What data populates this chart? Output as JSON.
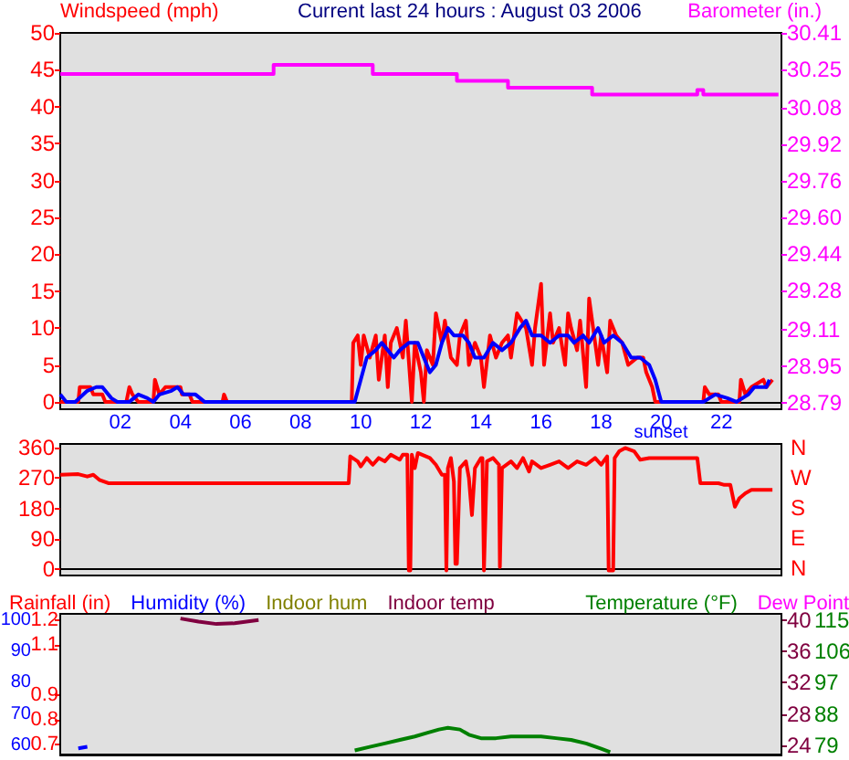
{
  "chart_data": [
    {
      "type": "line",
      "title": "Current last 24 hours : August 03 2006",
      "ylabel": "Windspeed (mph)",
      "y2label": "Barometer (in.)",
      "xlim": [
        0,
        24
      ],
      "xticks": [
        {
          "value": 2,
          "label": "02"
        },
        {
          "value": 4,
          "label": "04"
        },
        {
          "value": 6,
          "label": "06"
        },
        {
          "value": 8,
          "label": "08"
        },
        {
          "value": 10,
          "label": "10"
        },
        {
          "value": 12,
          "label": "12"
        },
        {
          "value": 14,
          "label": "14"
        },
        {
          "value": 16,
          "label": "16"
        },
        {
          "value": 18,
          "label": "18"
        },
        {
          "value": 20,
          "label": "20"
        },
        {
          "value": 22,
          "label": "22"
        }
      ],
      "ylim": [
        -1,
        50
      ],
      "yticks": [
        0,
        5,
        10,
        15,
        20,
        25,
        30,
        35,
        40,
        45,
        50
      ],
      "y2lim": [
        28.76,
        30.41
      ],
      "y2ticks": [
        28.79,
        28.95,
        29.11,
        29.28,
        29.44,
        {
          "value": 29.6,
          "label": "29.60"
        },
        29.76,
        29.92,
        30.08,
        30.25,
        30.41
      ],
      "annotations": [
        "sunset"
      ],
      "series": [
        {
          "color": "#ff0000",
          "x": [
            0,
            0.6,
            0.65,
            1.0,
            1.1,
            1.4,
            1.5,
            2.2,
            2.3,
            2.4,
            2.6,
            3.1,
            3.15,
            3.3,
            3.5,
            4.0,
            4.05,
            4.3,
            4.4,
            5.4,
            5.45,
            5.55,
            9.7,
            9.75,
            9.9,
            10.0,
            10.1,
            10.3,
            10.5,
            10.6,
            10.8,
            10.9,
            11.0,
            11.2,
            11.4,
            11.5,
            11.7,
            11.8,
            12.0,
            12.1,
            12.2,
            12.4,
            12.5,
            12.7,
            12.8,
            13.0,
            13.2,
            13.3,
            13.5,
            13.6,
            13.8,
            14.0,
            14.1,
            14.3,
            14.5,
            14.7,
            14.9,
            15.0,
            15.2,
            15.5,
            15.7,
            15.8,
            16.0,
            16.1,
            16.3,
            16.4,
            16.6,
            16.8,
            16.9,
            17.0,
            17.2,
            17.3,
            17.5,
            17.6,
            17.8,
            17.9,
            18.0,
            18.2,
            18.3,
            18.5,
            18.7,
            18.9,
            19.2,
            19.4,
            19.5,
            19.7,
            19.8,
            21.4,
            21.45,
            21.6,
            21.9,
            22.0,
            22.6,
            22.65,
            22.8,
            23.0,
            23.4,
            23.5,
            23.7
          ],
          "values": [
            0,
            0,
            2,
            2,
            1,
            1,
            0,
            0,
            2,
            1,
            0,
            0,
            3,
            1,
            2,
            2,
            1,
            1,
            0,
            0,
            1,
            0,
            0,
            8,
            9,
            5,
            9,
            6,
            9,
            3,
            9,
            2,
            8,
            10,
            6,
            11,
            0,
            8,
            4,
            0,
            7,
            5,
            12,
            8,
            11,
            6,
            5,
            9,
            11,
            5,
            8,
            6,
            2,
            9,
            6,
            8,
            9,
            6,
            12,
            10,
            5,
            10,
            16,
            5,
            12,
            8,
            10,
            5,
            12,
            10,
            7,
            11,
            2,
            14,
            8,
            5,
            9,
            4,
            11,
            9,
            8,
            5,
            6,
            6,
            4,
            2,
            0,
            0,
            2,
            1,
            1,
            0,
            0,
            3,
            1,
            2,
            3,
            2,
            3
          ]
        },
        {
          "color": "#0000ff",
          "x": [
            0,
            0.2,
            0.5,
            0.9,
            1.2,
            1.4,
            1.7,
            1.9,
            2.3,
            2.6,
            2.9,
            3.1,
            3.3,
            3.7,
            3.9,
            4.1,
            4.5,
            4.8,
            9.8,
            10.0,
            10.2,
            10.5,
            10.7,
            10.9,
            11.1,
            11.3,
            11.6,
            11.9,
            12.1,
            12.3,
            12.5,
            12.7,
            12.9,
            13.1,
            13.4,
            13.6,
            13.8,
            14.1,
            14.4,
            14.7,
            15.0,
            15.3,
            15.5,
            15.7,
            16.0,
            16.3,
            16.6,
            16.9,
            17.1,
            17.4,
            17.6,
            17.9,
            18.1,
            18.4,
            18.7,
            19.0,
            19.3,
            19.6,
            19.8,
            20.0,
            21.4,
            21.6,
            21.8,
            22.2,
            22.5,
            22.9,
            23.1,
            23.5,
            23.6
          ],
          "values": [
            1,
            0,
            0,
            1.5,
            2,
            2,
            0.5,
            0,
            0,
            1,
            0.5,
            0,
            1,
            1.5,
            2,
            1,
            1,
            0,
            0,
            3,
            6,
            7,
            8,
            7,
            6,
            7,
            8,
            8,
            6,
            4,
            5,
            8,
            10,
            9,
            9,
            8,
            6,
            6,
            8,
            7,
            8,
            10,
            11,
            9,
            9,
            8,
            9,
            9,
            8,
            9,
            8,
            10,
            8,
            9,
            8,
            6,
            6,
            5,
            3,
            0,
            0,
            0.5,
            1,
            0.5,
            0,
            1,
            2,
            2,
            3
          ]
        },
        {
          "type": "step",
          "axis": "y2",
          "color": "#ff00ff",
          "x": [
            0,
            7.1,
            10.4,
            13.2,
            14.9,
            17.7,
            21.2,
            21.4,
            23.9
          ],
          "values": [
            30.23,
            30.27,
            30.23,
            30.2,
            30.17,
            30.14,
            30.16,
            30.14,
            30.14
          ]
        }
      ]
    },
    {
      "type": "line",
      "tick_labels": "y",
      "xlim": [
        0,
        24
      ],
      "ylim": [
        -20,
        372
      ],
      "yticks": [
        0,
        90,
        180,
        270,
        360
      ],
      "annotations": [
        "N",
        "W",
        "S",
        "E",
        "N"
      ],
      "series": [
        {
          "color": "#ff0000",
          "x": [
            0,
            0.6,
            0.9,
            1.1,
            1.3,
            1.6,
            9.6,
            9.65,
            9.9,
            10.0,
            10.2,
            10.4,
            10.6,
            10.8,
            11.0,
            11.3,
            11.4,
            11.55,
            11.6,
            11.65,
            11.7,
            11.8,
            11.9,
            12.3,
            12.5,
            12.7,
            12.8,
            12.85,
            12.9,
            13.0,
            13.1,
            13.15,
            13.2,
            13.3,
            13.5,
            13.6,
            13.7,
            13.8,
            14.0,
            14.05,
            14.1,
            14.2,
            14.4,
            14.6,
            14.63,
            14.66,
            14.7,
            15.0,
            15.2,
            15.4,
            15.6,
            15.7,
            16.0,
            16.3,
            16.6,
            16.9,
            17.2,
            17.5,
            17.8,
            18.0,
            18.2,
            18.25,
            18.4,
            18.45,
            18.6,
            18.8,
            19.1,
            19.3,
            19.6,
            21.2,
            21.3,
            21.9,
            22.1,
            22.3,
            22.45,
            22.6,
            22.8,
            23.0,
            23.7
          ],
          "values": [
            280,
            282,
            275,
            280,
            265,
            255,
            255,
            335,
            320,
            305,
            330,
            310,
            330,
            320,
            340,
            325,
            340,
            340,
            -5,
            -5,
            340,
            300,
            345,
            330,
            310,
            280,
            280,
            -5,
            300,
            330,
            260,
            15,
            15,
            300,
            320,
            270,
            160,
            300,
            330,
            330,
            -5,
            320,
            330,
            310,
            5,
            5,
            300,
            320,
            300,
            330,
            290,
            320,
            300,
            310,
            320,
            300,
            320,
            310,
            330,
            310,
            335,
            -5,
            -5,
            330,
            350,
            360,
            350,
            325,
            330,
            330,
            255,
            255,
            250,
            250,
            185,
            210,
            225,
            235,
            235
          ]
        }
      ]
    },
    {
      "type": "line",
      "tick_labels": "y",
      "legend": "top",
      "xlim": [
        0,
        24
      ],
      "ylim": [
        57,
        102
      ],
      "yticks": [
        60,
        70,
        80,
        90,
        100
      ],
      "y2lim": [
        0.66,
        1.225
      ],
      "y2ticks": [
        0.7,
        0.8,
        0.9,
        1.1,
        1.2
      ],
      "y3lim": [
        22.8,
        40.8
      ],
      "y3ticks": [
        24,
        28,
        32,
        36,
        40
      ],
      "series": [
        {
          "name": "Rainfall (in)",
          "color": "#ff0000"
        },
        {
          "name": "Humidity (%)",
          "color": "#0000ff",
          "x": [
            0.6,
            0.9
          ],
          "values": [
            59,
            59.5
          ]
        },
        {
          "name": "Indoor hum",
          "color": "#808000"
        },
        {
          "name": "Indoor temp",
          "axis": "y3",
          "color": "#800040",
          "x": [
            4.0,
            4.6,
            5.2,
            5.8,
            6.6
          ],
          "values": [
            40.2,
            39.8,
            39.5,
            39.6,
            40.0
          ]
        }
      ]
    },
    {
      "type": "line",
      "tick_labels": "y",
      "legend": "top right",
      "xlim": [
        0,
        24
      ],
      "ylim": [
        76.3,
        116.8
      ],
      "yticks": [
        79,
        88,
        97,
        106,
        115
      ],
      "series": [
        {
          "name": "Temperature (°F)",
          "color": "#008000",
          "x": [
            9.8,
            10.3,
            10.8,
            11.3,
            11.8,
            12.2,
            12.6,
            12.9,
            13.3,
            13.6,
            14.0,
            14.5,
            15.0,
            15.5,
            16.0,
            16.5,
            17.0,
            17.5,
            18.0,
            18.3
          ],
          "values": [
            77.5,
            78.5,
            79.5,
            80.5,
            81.5,
            82.5,
            83.5,
            84,
            83.5,
            82,
            81,
            81,
            81.5,
            81.5,
            81.5,
            81,
            80.5,
            79.5,
            78,
            77
          ]
        },
        {
          "name": "Dew Point",
          "color": "#ff00ff"
        }
      ]
    }
  ]
}
